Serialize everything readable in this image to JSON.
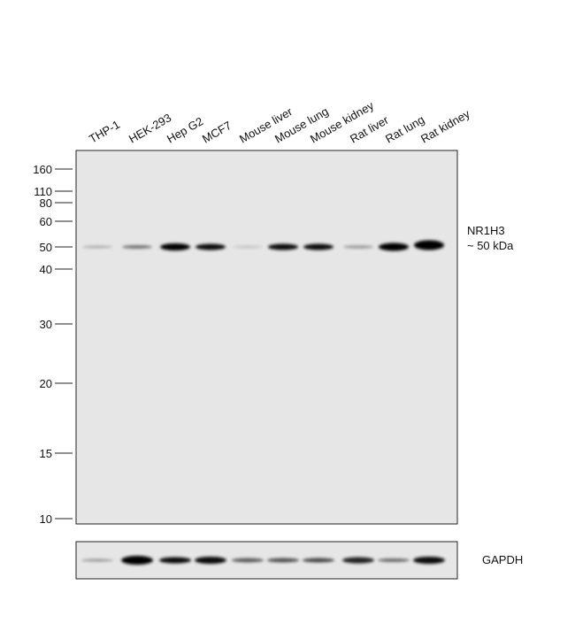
{
  "lanes": [
    "THP-1",
    "HEK-293",
    "Hep G2",
    "MCF7",
    "Mouse liver",
    "Mouse lung",
    "Mouse kidney",
    "Rat liver",
    "Rat lung",
    "Rat kidney"
  ],
  "markers": [
    160,
    110,
    80,
    60,
    50,
    40,
    30,
    20,
    15,
    10
  ],
  "target": {
    "name": "NR1H3",
    "size": "~ 50 kDa"
  },
  "loading_control": "GAPDH"
}
